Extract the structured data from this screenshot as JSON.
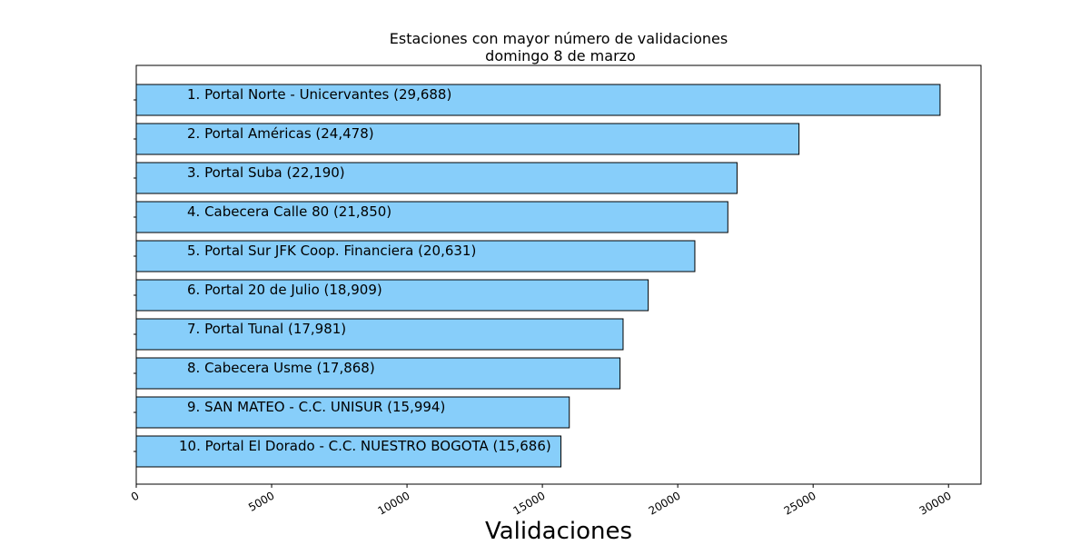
{
  "chart_data": {
    "type": "bar",
    "orientation": "horizontal",
    "title": "Estaciones con mayor número de validaciones",
    "subtitle": "domingo 8 de marzo",
    "xlabel": "Validaciones",
    "ylabel": "",
    "xlim": [
      0,
      31200
    ],
    "xticks": [
      0,
      5000,
      10000,
      15000,
      20000,
      25000,
      30000
    ],
    "grid": false,
    "bar_color": "#87CEFA",
    "bar_edge_color": "#000000",
    "categories": [
      "1. Portal Norte - Unicervantes (29,688)",
      "2. Portal Américas (24,478)",
      "3. Portal Suba (22,190)",
      "4. Cabecera Calle 80 (21,850)",
      "5. Portal Sur JFK Coop. Financiera (20,631)",
      "6. Portal 20 de Julio (18,909)",
      "7. Portal Tunal (17,981)",
      "8. Cabecera Usme (17,868)",
      "9. SAN MATEO - C.C. UNISUR (15,994)",
      "10. Portal El Dorado - C.C. NUESTRO BOGOTA (15,686)"
    ],
    "values": [
      29688,
      24478,
      22190,
      21850,
      20631,
      18909,
      17981,
      17868,
      15994,
      15686
    ]
  }
}
